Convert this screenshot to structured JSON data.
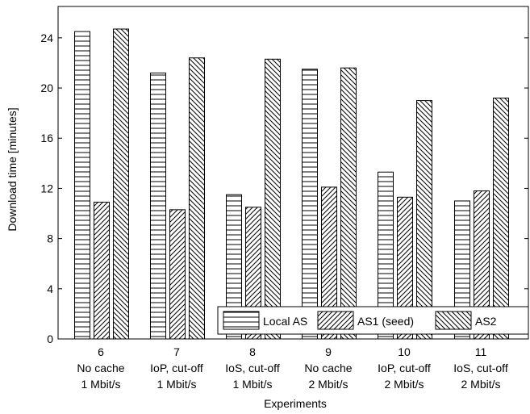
{
  "chart_data": {
    "type": "bar",
    "xlabel": "Experiments",
    "ylabel": "Download time [minutes]",
    "ylim": [
      0,
      26.5
    ],
    "yticks": [
      0,
      4,
      8,
      12,
      16,
      20,
      24
    ],
    "grid": false,
    "legend_position": "bottom-right",
    "categories": [
      {
        "line1": "6",
        "line2": "No cache",
        "line3": "1 Mbit/s"
      },
      {
        "line1": "7",
        "line2": "IoP, cut-off",
        "line3": "1 Mbit/s"
      },
      {
        "line1": "8",
        "line2": "IoS, cut-off",
        "line3": "1 Mbit/s"
      },
      {
        "line1": "9",
        "line2": "No cache",
        "line3": "2 Mbit/s"
      },
      {
        "line1": "10",
        "line2": "IoP, cut-off",
        "line3": "2 Mbit/s"
      },
      {
        "line1": "11",
        "line2": "IoS, cut-off",
        "line3": "2 Mbit/s"
      }
    ],
    "series": [
      {
        "name": "Local AS",
        "pattern": "horizontal",
        "values": [
          24.5,
          21.2,
          11.5,
          21.5,
          13.3,
          11.0
        ]
      },
      {
        "name": "AS1 (seed)",
        "pattern": "diagonal-up",
        "values": [
          10.9,
          10.3,
          10.5,
          12.1,
          11.3,
          11.8
        ]
      },
      {
        "name": "AS2",
        "pattern": "diagonal-down",
        "values": [
          24.7,
          22.4,
          22.3,
          21.6,
          19.0,
          19.2
        ]
      }
    ]
  }
}
